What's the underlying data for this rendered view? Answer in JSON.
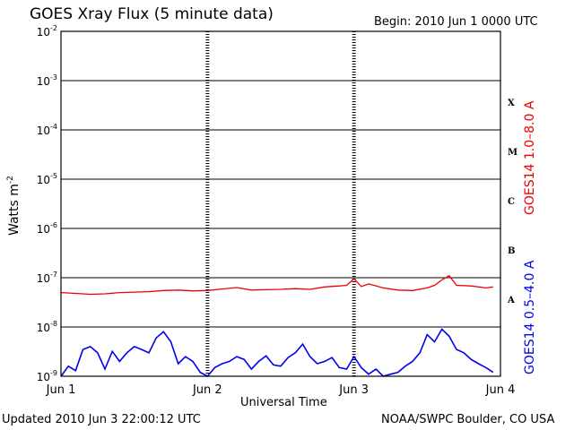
{
  "header": {
    "title": "GOES Xray Flux (5 minute data)",
    "begin": "Begin:  2010 Jun 1 0000 UTC"
  },
  "footer": {
    "updated": "Updated 2010 Jun  3 22:00:12 UTC",
    "credit": "NOAA/SWPC Boulder, CO USA"
  },
  "axes": {
    "xlabel": "Universal Time",
    "ylabel_text": "Watts m",
    "ylabel_exp": "-2",
    "right_label_long": "GOES14 1.0–8.0 A",
    "right_label_short": "GOES14 0.5–4.0 A",
    "class_labels": [
      "A",
      "B",
      "C",
      "M",
      "X"
    ]
  },
  "colors": {
    "long": "#ee0000",
    "short": "#0000ee",
    "grid": "#000000"
  },
  "chart_data": {
    "type": "line",
    "title": "GOES Xray Flux (5 minute data)",
    "xlabel": "Universal Time",
    "ylabel": "Watts m-2",
    "yscale": "log",
    "ylim": [
      1e-09,
      0.01
    ],
    "xlim": [
      0,
      3
    ],
    "x_ticks": [
      {
        "value": 0,
        "label": "Jun 1"
      },
      {
        "value": 1,
        "label": "Jun 2"
      },
      {
        "value": 2,
        "label": "Jun 3"
      },
      {
        "value": 3,
        "label": "Jun 4"
      }
    ],
    "y_ticks": [
      {
        "value": 1e-09,
        "base": "10",
        "exp": "-9"
      },
      {
        "value": 1e-08,
        "base": "10",
        "exp": "-8"
      },
      {
        "value": 1e-07,
        "base": "10",
        "exp": "-7"
      },
      {
        "value": 1e-06,
        "base": "10",
        "exp": "-6"
      },
      {
        "value": 1e-05,
        "base": "10",
        "exp": "-5"
      },
      {
        "value": 0.0001,
        "base": "10",
        "exp": "-4"
      },
      {
        "value": 0.001,
        "base": "10",
        "exp": "-3"
      },
      {
        "value": 0.01,
        "base": "10",
        "exp": "-2"
      }
    ],
    "grid": true,
    "series": [
      {
        "name": "GOES14 1.0–8.0 A",
        "color": "#ee0000",
        "x": [
          0.0,
          0.1,
          0.2,
          0.3,
          0.4,
          0.5,
          0.6,
          0.7,
          0.8,
          0.9,
          1.0,
          1.1,
          1.2,
          1.3,
          1.4,
          1.5,
          1.6,
          1.7,
          1.8,
          1.9,
          1.95,
          2.0,
          2.05,
          2.1,
          2.2,
          2.3,
          2.4,
          2.5,
          2.55,
          2.6,
          2.65,
          2.7,
          2.8,
          2.9,
          2.95
        ],
        "values": [
          5e-08,
          4.8e-08,
          4.6e-08,
          4.7e-08,
          5e-08,
          5.1e-08,
          5.2e-08,
          5.5e-08,
          5.6e-08,
          5.4e-08,
          5.5e-08,
          5.9e-08,
          6.3e-08,
          5.6e-08,
          5.7e-08,
          5.8e-08,
          6e-08,
          5.8e-08,
          6.5e-08,
          6.8e-08,
          7e-08,
          9.5e-08,
          6.6e-08,
          7.5e-08,
          6.2e-08,
          5.6e-08,
          5.5e-08,
          6.2e-08,
          7e-08,
          9e-08,
          1.1e-07,
          7e-08,
          6.8e-08,
          6.2e-08,
          6.5e-08
        ]
      },
      {
        "name": "GOES14 0.5–4.0 A",
        "color": "#0000ee",
        "x": [
          0.0,
          0.05,
          0.1,
          0.15,
          0.2,
          0.25,
          0.3,
          0.35,
          0.4,
          0.45,
          0.5,
          0.55,
          0.6,
          0.65,
          0.7,
          0.75,
          0.8,
          0.85,
          0.9,
          0.95,
          1.0,
          1.05,
          1.1,
          1.15,
          1.2,
          1.25,
          1.3,
          1.35,
          1.4,
          1.45,
          1.5,
          1.55,
          1.6,
          1.65,
          1.7,
          1.75,
          1.8,
          1.85,
          1.9,
          1.95,
          2.0,
          2.05,
          2.1,
          2.15,
          2.2,
          2.25,
          2.3,
          2.35,
          2.4,
          2.45,
          2.5,
          2.55,
          2.6,
          2.65,
          2.7,
          2.75,
          2.8,
          2.85,
          2.9,
          2.95
        ],
        "values": [
          1e-09,
          1.6e-09,
          1.3e-09,
          3.5e-09,
          4e-09,
          3e-09,
          1.4e-09,
          3.2e-09,
          2e-09,
          3e-09,
          4e-09,
          3.5e-09,
          3e-09,
          6e-09,
          8e-09,
          5e-09,
          1.8e-09,
          2.5e-09,
          2e-09,
          1.2e-09,
          1e-09,
          1.5e-09,
          1.8e-09,
          2e-09,
          2.5e-09,
          2.2e-09,
          1.4e-09,
          2e-09,
          2.6e-09,
          1.7e-09,
          1.6e-09,
          2.4e-09,
          3e-09,
          4.5e-09,
          2.5e-09,
          1.8e-09,
          2e-09,
          2.4e-09,
          1.5e-09,
          1.4e-09,
          2.5e-09,
          1.5e-09,
          1.1e-09,
          1.4e-09,
          1e-09,
          1.1e-09,
          1.2e-09,
          1.6e-09,
          2e-09,
          3e-09,
          7e-09,
          5e-09,
          9e-09,
          6.5e-09,
          3.5e-09,
          3e-09,
          2.2e-09,
          1.8e-09,
          1.5e-09,
          1.2e-09
        ]
      }
    ]
  }
}
